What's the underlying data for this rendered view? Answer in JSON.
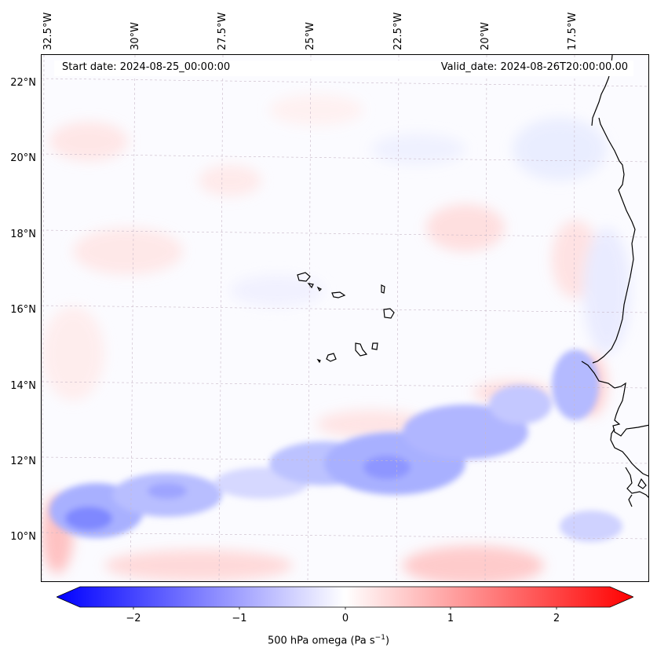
{
  "header": {
    "start_date": "Start date: 2024-08-25_00:00:00",
    "valid_date": "Valid_date: 2024-08-26T20:00:00.00"
  },
  "lon_labels": [
    "32.5°W",
    "30°W",
    "27.5°W",
    "25°W",
    "22.5°W",
    "20°W",
    "17.5°W"
  ],
  "lat_labels": [
    "22°N",
    "20°N",
    "18°N",
    "16°N",
    "14°N",
    "12°N",
    "10°N"
  ],
  "colorbar": {
    "ticks": [
      "−2",
      "−1",
      "0",
      "1",
      "2"
    ],
    "tick_values": [
      -2,
      -1,
      0,
      1,
      2
    ],
    "range": [
      -2.5,
      2.5
    ],
    "label_main": "500 hPa omega (Pa s",
    "label_exp": "−1",
    "label_close": ")",
    "colors": {
      "low": "#0000ff",
      "mid": "#ffffff",
      "high": "#ff0000"
    }
  },
  "map": {
    "field_description": "omega at 500 hPa, pale background with blue ascent band across 10-14°N and pale red patches",
    "coastline_color": "#000000",
    "grid_color": "#c8b8c8"
  }
}
